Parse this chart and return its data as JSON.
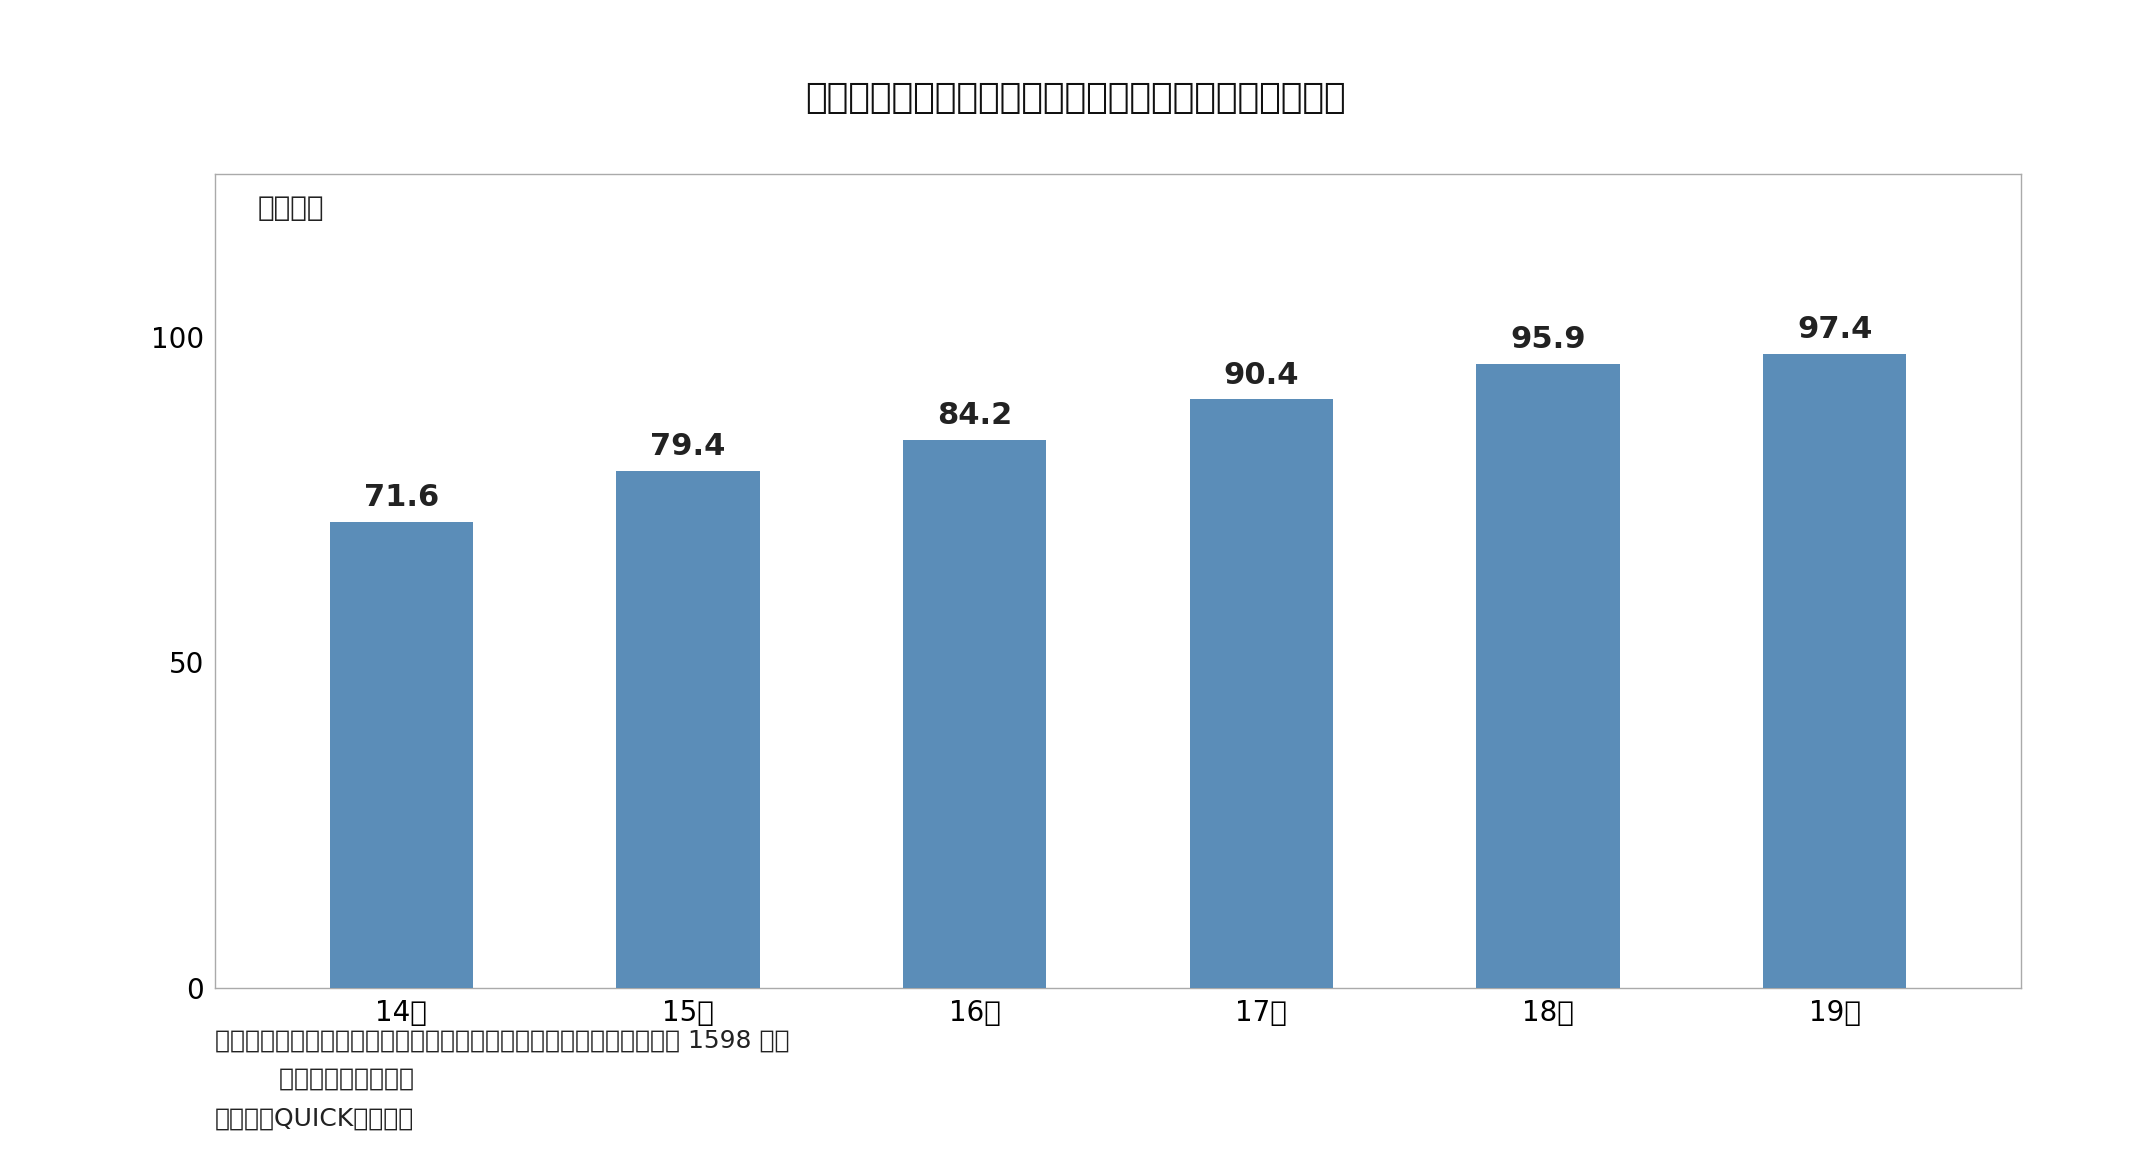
{
  "title": "》図表２「上場企業が保有する現預金は増え続けている",
  "title_plain": "【図表２】上場企業が保有する現預金は増え続けている",
  "categories": [
    "14年",
    "15年",
    "16年",
    "17年",
    "18年",
    "19年"
  ],
  "values": [
    71.6,
    79.4,
    84.2,
    90.4,
    95.9,
    97.4
  ],
  "bar_color": "#5b8db8",
  "ylabel": "（兆円）",
  "ylim": [
    0,
    125
  ],
  "yticks": [
    0,
    50,
    100
  ],
  "note_line1": "（注）各年１月時点。東証１部のうち連続してデータを取得できる約 1598 社の",
  "note_line2": "        合計（金融を除く）",
  "note_line3": "（資料）QUICKより作成",
  "background_color": "#ffffff",
  "plot_bg_color": "#ffffff",
  "border_color": "#888888",
  "title_fontsize": 26,
  "label_fontsize": 20,
  "tick_fontsize": 20,
  "value_fontsize": 22,
  "note_fontsize": 18
}
